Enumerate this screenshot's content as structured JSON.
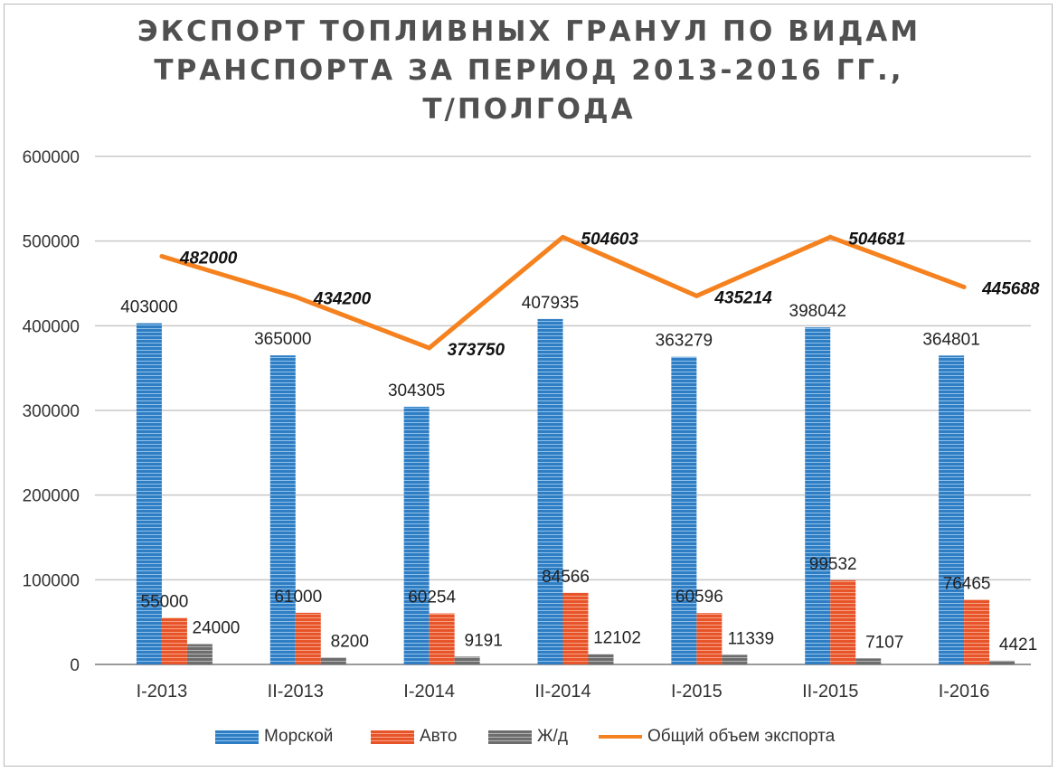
{
  "title_lines": [
    "ЭКСПОРТ ТОПЛИВНЫХ ГРАНУЛ ПО ВИДАМ",
    "ТРАНСПОРТА ЗА ПЕРИОД 2013-2016 ГГ.,",
    "Т/ПОЛГОДА"
  ],
  "colors": {
    "sea": "#2f7ec4",
    "auto": "#e8542a",
    "rail": "#6d6d6d",
    "total": "#f5821f",
    "grid": "#c8c8c8"
  },
  "legend": [
    {
      "label": "Морской",
      "key": "sea"
    },
    {
      "label": "Авто",
      "key": "auto"
    },
    {
      "label": "Ж/д",
      "key": "rail"
    },
    {
      "label": "Общий объем экспорта",
      "key": "total"
    }
  ],
  "chart_data": {
    "type": "bar",
    "title": "ЭКСПОРТ ТОПЛИВНЫХ ГРАНУЛ ПО ВИДАМ ТРАНСПОРТА ЗА ПЕРИОД 2013-2016 ГГ., Т/ПОЛГОДА",
    "categories": [
      "I-2013",
      "II-2013",
      "I-2014",
      "II-2014",
      "I-2015",
      "II-2015",
      "I-2016"
    ],
    "series": [
      {
        "name": "Морской",
        "type": "bar",
        "values": [
          403000,
          365000,
          304305,
          407935,
          363279,
          398042,
          364801
        ]
      },
      {
        "name": "Авто",
        "type": "bar",
        "values": [
          55000,
          61000,
          60254,
          84566,
          60596,
          99532,
          76465
        ]
      },
      {
        "name": "Ж/д",
        "type": "bar",
        "values": [
          24000,
          8200,
          9191,
          12102,
          11339,
          7107,
          4421
        ]
      },
      {
        "name": "Общий объем экспорта",
        "type": "line",
        "values": [
          482000,
          434200,
          373750,
          504603,
          435214,
          504681,
          445688
        ]
      }
    ],
    "yticks": [
      0,
      100000,
      200000,
      300000,
      400000,
      500000,
      600000
    ],
    "ylim": [
      0,
      600000
    ],
    "grid": true,
    "legend_position": "bottom"
  }
}
